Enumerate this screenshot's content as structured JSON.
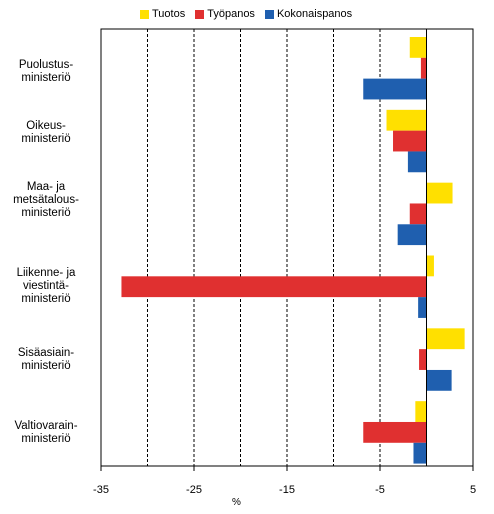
{
  "chart_data": {
    "type": "bar",
    "orientation": "horizontal",
    "categories": [
      "Puolustus-\nministeriö",
      "Oikeus-\nministeriö",
      "Maa- ja\nmetsätalous-\nministeriö",
      "Liikenne- ja\nviestintä-\nministeriö",
      "Sisäasiain-\nministeriö",
      "Valtiovarain-\nministeriö"
    ],
    "series": [
      {
        "name": "Tuotos",
        "color": "#FFE000",
        "values": [
          -1.8,
          -4.3,
          2.8,
          0.8,
          4.1,
          -1.2
        ]
      },
      {
        "name": "Työpanos",
        "color": "#E03030",
        "values": [
          -0.6,
          -3.6,
          -1.8,
          -32.8,
          -0.8,
          -6.8
        ]
      },
      {
        "name": "Kokonaispanos",
        "color": "#1F5FAF",
        "values": [
          -6.8,
          -2.0,
          -3.1,
          -0.9,
          2.7,
          -1.4
        ]
      }
    ],
    "xlim": [
      -35,
      5
    ],
    "xticks": [
      "-35",
      "-25",
      "-15",
      "-5",
      "5"
    ],
    "gridlines": [
      -30,
      -25,
      -20,
      -15,
      -10,
      -5
    ],
    "xlabel": "%",
    "legend_position": "top"
  }
}
